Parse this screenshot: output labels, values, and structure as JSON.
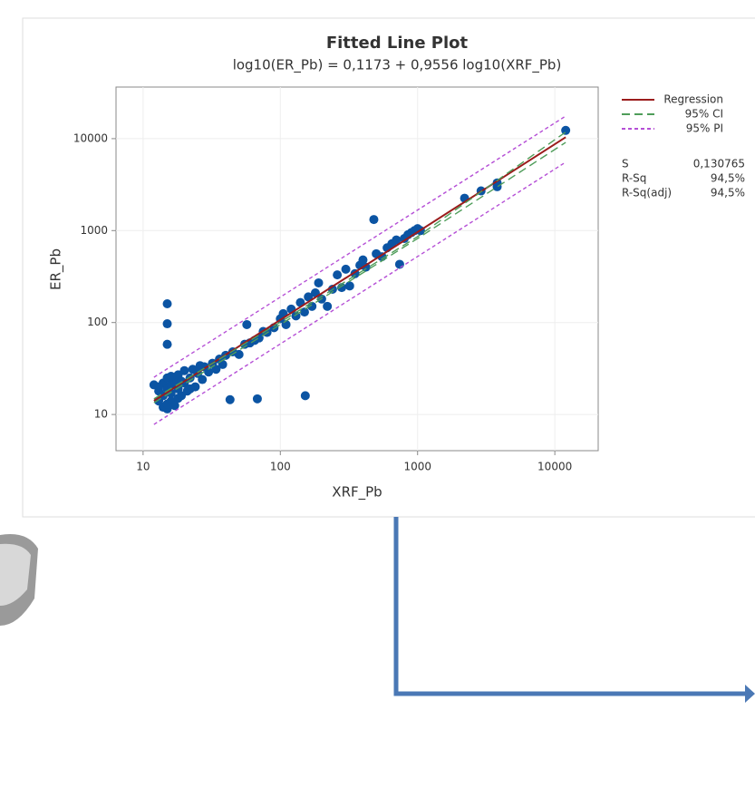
{
  "chart_data": {
    "type": "scatter",
    "title": "Fitted Line Plot",
    "subtitle": "log10(ER_Pb) = 0,1173 + 0,9556 log10(XRF_Pb)",
    "x_label": "XRF_Pb",
    "y_label": "ER_Pb",
    "log_x": true,
    "log_y": true,
    "grid": true,
    "xlim": [
      6.35,
      20700
    ],
    "ylim": [
      4.04,
      36400
    ],
    "xticks": [
      10,
      100,
      1000,
      10000
    ],
    "yticks": [
      10,
      100,
      1000,
      10000
    ],
    "series": [
      {
        "kind": "scatter",
        "color": "#0b54a3",
        "x": [
          12,
          13,
          13,
          14,
          14,
          14,
          15,
          15,
          15,
          15,
          16,
          16,
          16,
          17,
          17,
          18,
          18,
          18,
          19,
          20,
          20,
          21,
          22,
          23,
          24,
          25,
          27,
          28,
          30,
          32,
          34,
          36,
          38,
          40,
          43,
          45,
          50,
          55,
          57,
          60,
          65,
          68,
          70,
          75,
          80,
          90,
          100,
          105,
          110,
          120,
          130,
          140,
          152,
          150,
          160,
          170,
          180,
          190,
          200,
          220,
          240,
          260,
          280,
          300,
          320,
          350,
          380,
          400,
          420,
          480,
          500,
          550,
          600,
          650,
          700,
          740,
          800,
          850,
          900,
          950,
          1000,
          1050,
          2200,
          2900,
          3800,
          3800,
          12000,
          15,
          15,
          15,
          13,
          16,
          19,
          22,
          26
        ],
        "values": [
          21,
          18,
          14,
          12,
          16,
          22,
          11.5,
          13,
          19,
          25,
          14,
          17,
          21,
          12.5,
          23,
          15,
          19,
          27,
          16,
          22,
          30,
          18,
          25,
          31,
          20,
          28,
          24,
          33,
          29,
          36,
          31,
          40,
          35,
          44,
          14.5,
          48,
          45,
          58,
          95,
          60,
          64,
          14.8,
          68,
          80,
          78,
          88,
          110,
          125,
          95,
          140,
          118,
          165,
          16,
          130,
          190,
          150,
          210,
          270,
          180,
          150,
          230,
          330,
          240,
          380,
          250,
          340,
          420,
          480,
          400,
          1320,
          560,
          520,
          650,
          720,
          790,
          430,
          820,
          900,
          950,
          1000,
          1050,
          1000,
          2250,
          2700,
          3000,
          3300,
          12300,
          160,
          97,
          58,
          20,
          26,
          23,
          19,
          34
        ]
      },
      {
        "kind": "line",
        "name": "Regression",
        "color": "#9b1c1c",
        "dash": "none",
        "x": [
          12,
          12000
        ],
        "values": [
          14.1,
          10360
        ]
      },
      {
        "kind": "line",
        "name": "95% CI",
        "color": "#4f9d5a",
        "dash": "9 5",
        "x": [
          12,
          100,
          1000,
          12000
        ],
        "values": [
          14.8,
          101,
          860,
          11800
        ]
      },
      {
        "kind": "line",
        "name": "95% CI",
        "color": "#4f9d5a",
        "dash": "9 5",
        "x": [
          12,
          100,
          1000,
          12000
        ],
        "values": [
          13.4,
          95,
          820,
          9100
        ]
      },
      {
        "kind": "line",
        "name": "95% PI",
        "color": "#b54fd6",
        "dash": "4 3",
        "x": [
          12,
          12000
        ],
        "values": [
          25.4,
          17600
        ]
      },
      {
        "kind": "line",
        "name": "95% PI",
        "color": "#b54fd6",
        "dash": "4 3",
        "x": [
          12,
          12000
        ],
        "values": [
          7.8,
          5550
        ]
      }
    ],
    "legend": [
      {
        "name": "Regression",
        "color": "#9b1c1c",
        "dash": "none"
      },
      {
        "name": "95% CI",
        "color": "#4f9d5a",
        "dash": "9 5"
      },
      {
        "name": "95% PI",
        "color": "#b54fd6",
        "dash": "4 3"
      }
    ],
    "stats": [
      [
        "S",
        "0,130765"
      ],
      [
        "R-Sq",
        "94,5%"
      ],
      [
        "R-Sq(adj)",
        "94,5%"
      ]
    ]
  }
}
